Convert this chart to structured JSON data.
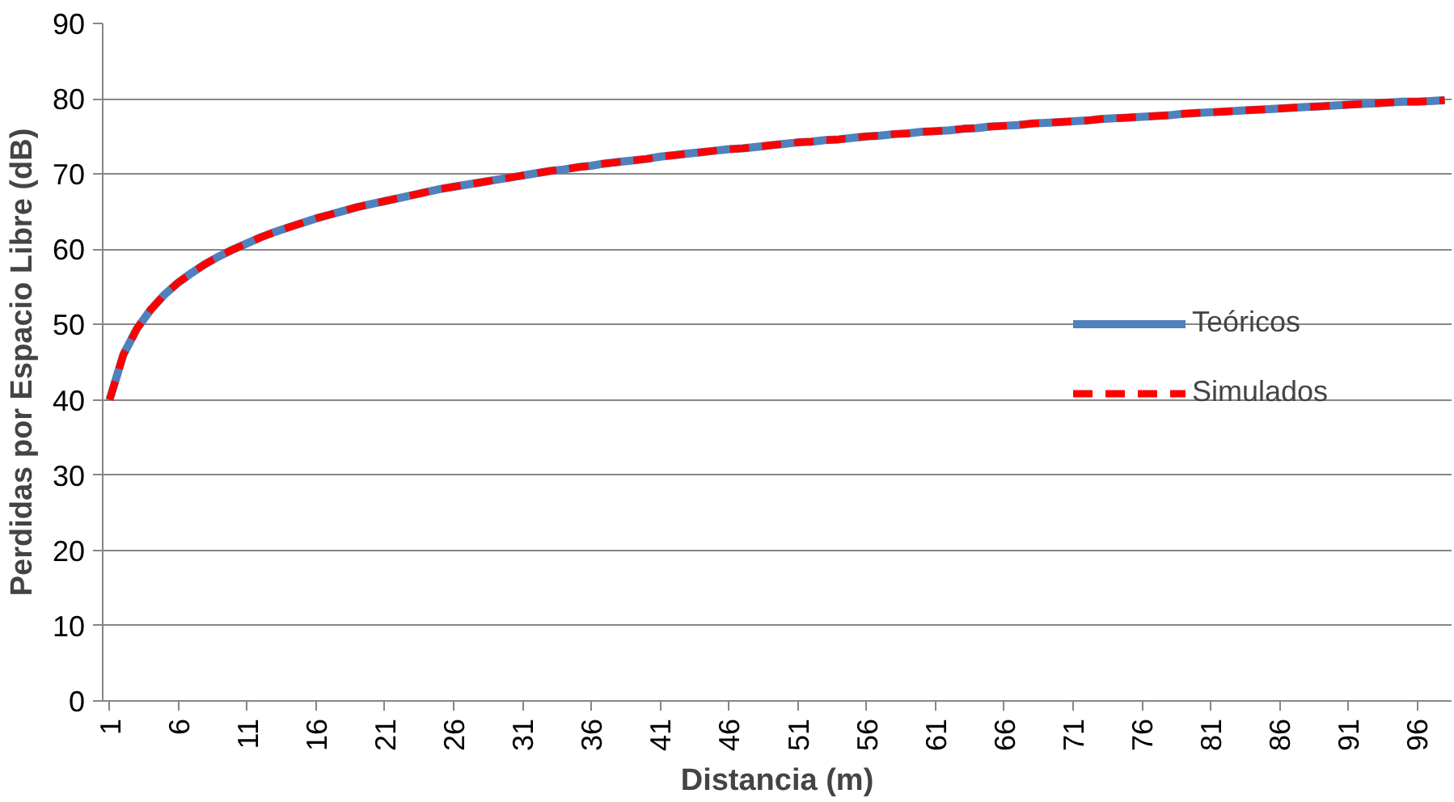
{
  "chart_data": {
    "type": "line",
    "xlabel": "Distancia (m)",
    "ylabel": "Perdidas por Espacio Libre (dB)",
    "categories": [
      "1",
      null,
      null,
      null,
      null,
      "6",
      null,
      null,
      null,
      null,
      "11",
      null,
      null,
      null,
      null,
      "16",
      null,
      null,
      null,
      null,
      "21",
      null,
      null,
      null,
      null,
      "26",
      null,
      null,
      null,
      null,
      "31",
      null,
      null,
      null,
      null,
      "36",
      null,
      null,
      null,
      null,
      "41",
      null,
      null,
      null,
      null,
      "46",
      null,
      null,
      null,
      null,
      "51",
      null,
      null,
      null,
      null,
      "56",
      null,
      null,
      null,
      null,
      "61",
      null,
      null,
      null,
      null,
      "66",
      null,
      null,
      null,
      null,
      "71",
      null,
      null,
      null,
      null,
      "76",
      null,
      null,
      null,
      null,
      "81",
      null,
      null,
      null,
      null,
      "86",
      null,
      null,
      null,
      null,
      "91",
      null,
      null,
      null,
      null,
      "96",
      null,
      null
    ],
    "ylim": [
      0,
      90
    ],
    "yticks": [
      0,
      10,
      20,
      30,
      40,
      50,
      60,
      70,
      80,
      90
    ],
    "grid": "y",
    "legend": "right",
    "series": [
      {
        "name": "Teóricos",
        "color": "#4f81bd",
        "line_style": "solid",
        "values": [
          40.0,
          46.0,
          49.5,
          52.0,
          54.0,
          55.6,
          56.9,
          58.1,
          59.1,
          60.0,
          60.8,
          61.6,
          62.3,
          62.9,
          63.5,
          64.1,
          64.6,
          65.1,
          65.6,
          66.0,
          66.4,
          66.8,
          67.2,
          67.6,
          68.0,
          68.3,
          68.6,
          68.9,
          69.2,
          69.5,
          69.8,
          70.1,
          70.4,
          70.6,
          70.9,
          71.1,
          71.4,
          71.6,
          71.8,
          72.0,
          72.3,
          72.5,
          72.7,
          72.9,
          73.1,
          73.3,
          73.4,
          73.6,
          73.8,
          74.0,
          74.2,
          74.3,
          74.5,
          74.6,
          74.8,
          75.0,
          75.1,
          75.3,
          75.4,
          75.6,
          75.7,
          75.8,
          76.0,
          76.1,
          76.3,
          76.4,
          76.5,
          76.7,
          76.8,
          76.9,
          77.0,
          77.1,
          77.3,
          77.4,
          77.5,
          77.6,
          77.7,
          77.8,
          78.0,
          78.1,
          78.2,
          78.3,
          78.4,
          78.5,
          78.6,
          78.7,
          78.8,
          78.9,
          79.0,
          79.1,
          79.2,
          79.3,
          79.4,
          79.5,
          79.6,
          79.6,
          79.7,
          79.8
        ]
      },
      {
        "name": "Simulados",
        "color": "#ff0000",
        "line_style": "dashed",
        "values": [
          40.0,
          46.0,
          49.5,
          52.0,
          54.0,
          55.6,
          56.9,
          58.1,
          59.1,
          60.0,
          60.8,
          61.6,
          62.3,
          62.9,
          63.5,
          64.1,
          64.6,
          65.1,
          65.6,
          66.0,
          66.4,
          66.8,
          67.2,
          67.6,
          68.0,
          68.3,
          68.6,
          68.9,
          69.2,
          69.5,
          69.8,
          70.1,
          70.4,
          70.6,
          70.9,
          71.1,
          71.4,
          71.6,
          71.8,
          72.0,
          72.3,
          72.5,
          72.7,
          72.9,
          73.1,
          73.3,
          73.4,
          73.6,
          73.8,
          74.0,
          74.2,
          74.3,
          74.5,
          74.6,
          74.8,
          75.0,
          75.1,
          75.3,
          75.4,
          75.6,
          75.7,
          75.8,
          76.0,
          76.1,
          76.3,
          76.4,
          76.5,
          76.7,
          76.8,
          76.9,
          77.0,
          77.1,
          77.3,
          77.4,
          77.5,
          77.6,
          77.7,
          77.8,
          78.0,
          78.1,
          78.2,
          78.3,
          78.4,
          78.5,
          78.6,
          78.7,
          78.8,
          78.9,
          79.0,
          79.1,
          79.2,
          79.3,
          79.4,
          79.5,
          79.6,
          79.6,
          79.7,
          79.8
        ]
      }
    ]
  }
}
